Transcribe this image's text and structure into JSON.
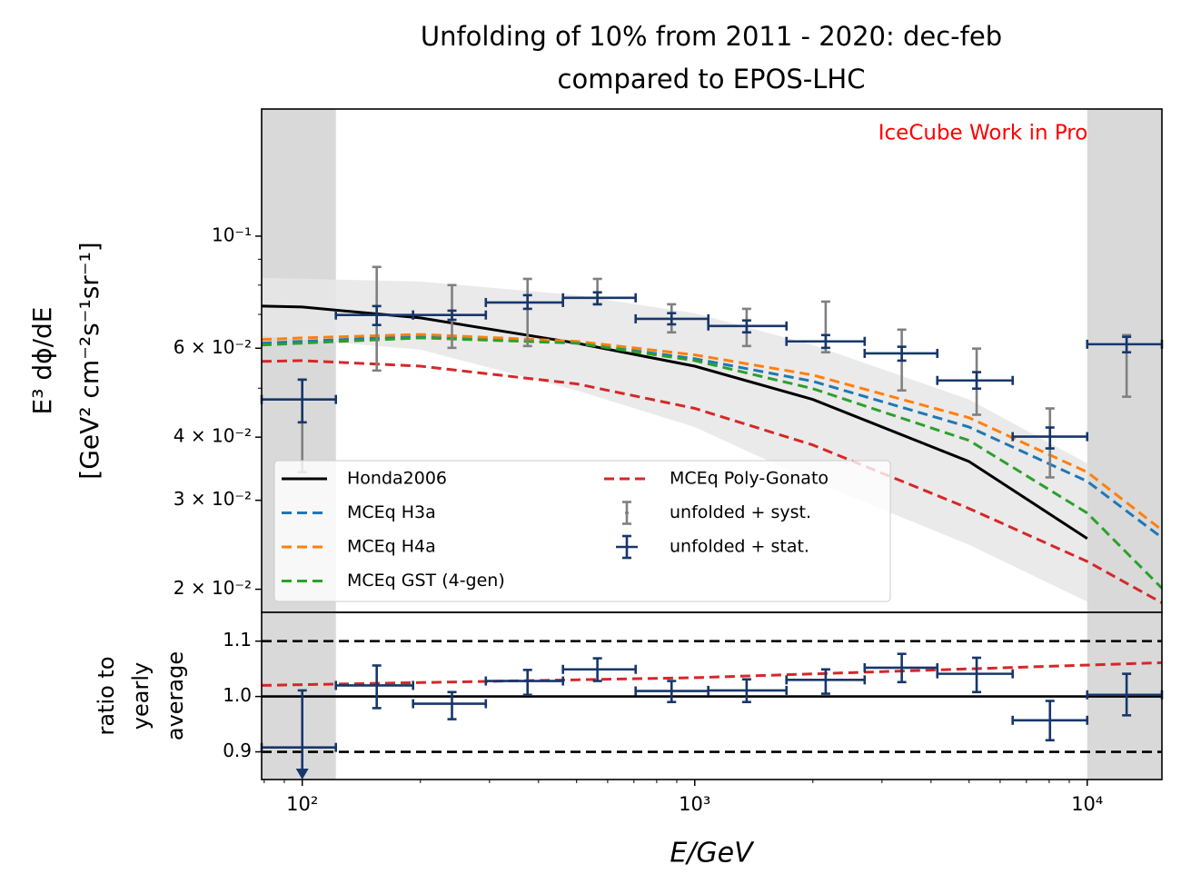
{
  "chart_data": [
    {
      "type": "line",
      "title_lines": [
        "Unfolding of 10% from 2011 - 2020: dec-feb",
        "compared to EPOS-LHC"
      ],
      "annotation": "IceCube Work in Progress",
      "annotation_color": "#ff0000",
      "ylabel_lines": [
        "E³ dϕ/dE",
        "[GeV² cm⁻²s⁻¹sr⁻¹]"
      ],
      "xscale": "log",
      "yscale": "log",
      "xlim": [
        78.8,
        15500
      ],
      "ylim": [
        0.018,
        0.1785
      ],
      "yticks": [
        {
          "value": 0.02,
          "label": "2 × 10⁻²"
        },
        {
          "value": 0.03,
          "label": "3 × 10⁻²"
        },
        {
          "value": 0.04,
          "label": "4 × 10⁻²"
        },
        {
          "value": 0.06,
          "label": "6 × 10⁻²"
        },
        {
          "value": 0.1,
          "label": "10⁻¹"
        }
      ],
      "yminorticks": [
        0.05,
        0.07,
        0.08,
        0.09
      ],
      "shaded_x": [
        [
          78.8,
          121.8
        ],
        [
          10000,
          15500
        ]
      ],
      "shade_color": "#d9d9d9",
      "band": {
        "color": "#e6e6e6",
        "x": [
          78.8,
          200,
          500,
          1000,
          2000,
          5000,
          10000
        ],
        "lower": [
          0.0634,
          0.0596,
          0.0495,
          0.0419,
          0.0327,
          0.0245,
          0.0189
        ],
        "upper": [
          0.0827,
          0.0813,
          0.0764,
          0.0704,
          0.0609,
          0.0475,
          0.0355
        ]
      },
      "series": [
        {
          "name": "Honda2006",
          "color": "#000000",
          "style": "solid",
          "x": [
            78.8,
            100,
            200,
            500,
            1000,
            2000,
            5000,
            10000
          ],
          "values": [
            0.0727,
            0.0724,
            0.0689,
            0.0614,
            0.0553,
            0.0475,
            0.0358,
            0.0252
          ]
        },
        {
          "name": "MCEq H3a",
          "color": "#1f77b4",
          "style": "dashed",
          "x": [
            78.8,
            100,
            200,
            500,
            1000,
            2000,
            5000,
            10000,
            15500
          ],
          "values": [
            0.0614,
            0.0619,
            0.0634,
            0.0614,
            0.0572,
            0.0516,
            0.0419,
            0.0327,
            0.0253
          ]
        },
        {
          "name": "MCEq H4a",
          "color": "#ff7f0e",
          "style": "dashed",
          "x": [
            78.8,
            100,
            200,
            500,
            1000,
            2000,
            5000,
            10000,
            15500
          ],
          "values": [
            0.0624,
            0.0629,
            0.0639,
            0.0619,
            0.0582,
            0.0531,
            0.0437,
            0.0341,
            0.0262
          ]
        },
        {
          "name": "MCEq GST (4-gen)",
          "color": "#2ca02c",
          "style": "dashed",
          "x": [
            78.8,
            100,
            200,
            500,
            1000,
            2000,
            5000,
            10000,
            15500
          ],
          "values": [
            0.0609,
            0.0614,
            0.0629,
            0.0614,
            0.0567,
            0.0499,
            0.0394,
            0.0283,
            0.0201
          ]
        },
        {
          "name": "MCEq Poly-Gonato",
          "color": "#d62728",
          "style": "dashed",
          "x": [
            78.8,
            100,
            200,
            500,
            1000,
            2000,
            5000,
            10000,
            15500
          ],
          "values": [
            0.0565,
            0.0567,
            0.0553,
            0.051,
            0.0456,
            0.0386,
            0.0289,
            0.0227,
            0.0188
          ]
        }
      ],
      "points": [
        {
          "name": "unfolded + syst.",
          "color": "#808080",
          "x": [
            100,
            154.8,
            240.7,
            375,
            565,
            873,
            1356,
            2156,
            3369,
            5227,
            8037,
            12600
          ],
          "values": [
            0.0475,
            0.0698,
            0.0698,
            0.0739,
            0.0755,
            0.0686,
            0.0664,
            0.0619,
            0.0586,
            0.0518,
            0.0401,
            0.0611
          ],
          "low": [
            0.0341,
            0.0542,
            0.0601,
            0.0606,
            0.0733,
            0.0645,
            0.0606,
            0.0589,
            0.0495,
            0.0443,
            0.0333,
            0.0481
          ],
          "high": [
            0.052,
            0.0869,
            0.08,
            0.0823,
            0.0823,
            0.0733,
            0.0718,
            0.0742,
            0.0653,
            0.0599,
            0.0456,
            0.0637
          ]
        },
        {
          "name": "unfolded + stat.",
          "color": "#17376b",
          "x": [
            100,
            154.8,
            240.7,
            375,
            565,
            873,
            1356,
            2156,
            3369,
            5227,
            8037,
            12600
          ],
          "x_low": [
            78.8,
            121.8,
            191.6,
            293.6,
            461.6,
            707,
            1083,
            1713,
            2710,
            4150,
            6457,
            10000
          ],
          "x_high": [
            121.8,
            191.6,
            293.6,
            461.6,
            707,
            1083,
            1713,
            2710,
            4150,
            6457,
            10000,
            15500
          ],
          "values": [
            0.0475,
            0.0698,
            0.0698,
            0.0739,
            0.0755,
            0.0686,
            0.0664,
            0.0619,
            0.0586,
            0.0518,
            0.0401,
            0.0611
          ],
          "low": [
            0.0428,
            0.0667,
            0.0683,
            0.0718,
            0.0733,
            0.0669,
            0.0645,
            0.0601,
            0.0567,
            0.0499,
            0.038,
            0.0589
          ],
          "high": [
            0.052,
            0.0727,
            0.0712,
            0.0764,
            0.0774,
            0.0704,
            0.0681,
            0.0637,
            0.0604,
            0.0538,
            0.0418,
            0.0632
          ]
        }
      ],
      "legend": "lower left",
      "legend_rows": 4
    },
    {
      "type": "scatter",
      "ylabel_lines": [
        "ratio to",
        "yearly",
        "average"
      ],
      "xlabel": "E/GeV",
      "xscale": "log",
      "xlim": [
        78.8,
        15500
      ],
      "ylim": [
        0.85,
        1.152
      ],
      "xticks": [
        {
          "value": 100,
          "label": "10²"
        },
        {
          "value": 1000,
          "label": "10³"
        },
        {
          "value": 10000,
          "label": "10⁴"
        }
      ],
      "xminorticks": [
        80,
        90,
        200,
        300,
        400,
        500,
        600,
        700,
        800,
        900,
        2000,
        3000,
        4000,
        5000,
        6000,
        7000,
        8000,
        9000
      ],
      "yticks": [
        0.9,
        {
          "value": 1,
          "label": "1.0"
        },
        1.1
      ],
      "shaded_x": [
        [
          78.8,
          121.8
        ],
        [
          10000,
          15500
        ]
      ],
      "shade_color": "#d9d9d9",
      "reference_lines": [
        {
          "y": 1.1,
          "style": "dashed"
        },
        {
          "y": 1,
          "style": "solid"
        },
        {
          "y": 0.9,
          "style": "dashed"
        }
      ],
      "series": [
        {
          "color": "#d62728",
          "style": "dashed",
          "x": [
            78.8,
            1000,
            15500
          ],
          "values": [
            1.02,
            1.034,
            1.061
          ]
        }
      ],
      "points": [
        {
          "color": "#17376b",
          "x": [
            100,
            154.8,
            240.7,
            375,
            565,
            873,
            1356,
            2156,
            3369,
            5227,
            8037,
            12600
          ],
          "x_low": [
            78.8,
            121.8,
            191.6,
            293.6,
            461.6,
            707,
            1083,
            1713,
            2710,
            4150,
            6457,
            10000
          ],
          "x_high": [
            121.8,
            191.6,
            293.6,
            461.6,
            707,
            1083,
            1713,
            2710,
            4150,
            6457,
            10000,
            15500
          ],
          "values": [
            0.908,
            1.02,
            0.987,
            1.028,
            1.049,
            1.01,
            1.011,
            1.03,
            1.052,
            1.041,
            0.957,
            1.003
          ],
          "low": [
            null,
            0.979,
            0.959,
            1.003,
            1.028,
            0.99,
            0.99,
            1.005,
            1.026,
            1.008,
            0.921,
            0.966
          ],
          "high": [
            1.011,
            1.056,
            1.008,
            1.048,
            1.069,
            1.028,
            1.031,
            1.049,
            1.077,
            1.07,
            0.992,
            1.041
          ]
        }
      ]
    }
  ]
}
